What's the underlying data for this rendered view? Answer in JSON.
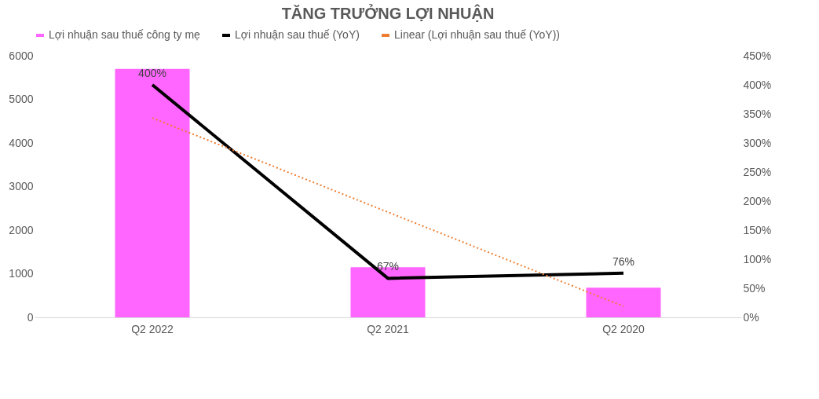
{
  "chart_data": {
    "type": "bar",
    "title": "TĂNG TRƯỞNG LỢI NHUẬN",
    "categories": [
      "Q2 2022",
      "Q2 2021",
      "Q2 2020"
    ],
    "series": [
      {
        "name": "Lợi nhuận sau thuế công ty mẹ",
        "color": "#ff66ff",
        "values": [
          5700,
          1150,
          680
        ]
      },
      {
        "name": "Lợi nhuận sau thuế (YoY)",
        "type": "line",
        "axis": "y2",
        "color": "#000000",
        "values": [
          400,
          67,
          76
        ],
        "value_labels": [
          "400%",
          "67%",
          "76%"
        ]
      },
      {
        "name": "Linear (Lợi nhuận sau thuế (YoY))",
        "type": "line",
        "axis": "y2",
        "color": "#ed7d31",
        "line_style": "dotted",
        "values": [
          343,
          181,
          19
        ]
      }
    ],
    "ylim": [
      0,
      6000
    ],
    "yticks": [
      0,
      1000,
      2000,
      3000,
      4000,
      5000,
      6000
    ],
    "y2lim": [
      0,
      450
    ],
    "y2ticks": [
      {
        "value": 0,
        "label": "0%"
      },
      {
        "value": 50,
        "label": "50%"
      },
      {
        "value": 100,
        "label": "100%"
      },
      {
        "value": 150,
        "label": "150%"
      },
      {
        "value": 200,
        "label": "200%"
      },
      {
        "value": 250,
        "label": "250%"
      },
      {
        "value": 300,
        "label": "300%"
      },
      {
        "value": 350,
        "label": "350%"
      },
      {
        "value": 400,
        "label": "400%"
      },
      {
        "value": 450,
        "label": "450%"
      }
    ],
    "legend": "top",
    "grid": false
  }
}
